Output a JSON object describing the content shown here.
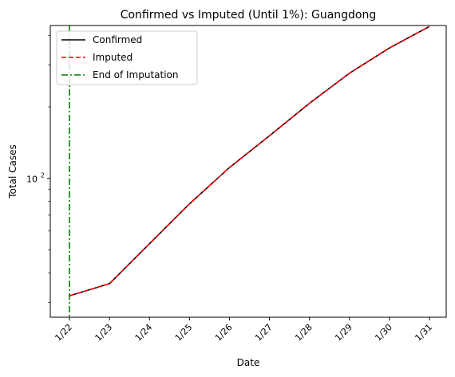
{
  "chart_data": {
    "type": "line",
    "title": "Confirmed vs Imputed (Until 1%): Guangdong",
    "xlabel": "Date",
    "ylabel": "Total Cases",
    "yscale": "log",
    "ylim": [
      26,
      440
    ],
    "categories": [
      "1/22",
      "1/23",
      "1/24",
      "1/25",
      "1/26",
      "1/27",
      "1/28",
      "1/29",
      "1/30",
      "1/31"
    ],
    "y_major_tick_labels": [
      {
        "value": 100,
        "base": "10",
        "exp": "2"
      }
    ],
    "y_minor_ticks": [
      30,
      40,
      50,
      60,
      70,
      80,
      90,
      200,
      300,
      400
    ],
    "series": [
      {
        "name": "Confirmed",
        "color": "#000000",
        "style": "solid",
        "values": [
          32,
          36,
          53,
          78,
          111,
          151,
          207,
          277,
          354,
          436
        ]
      },
      {
        "name": "Imputed",
        "color": "#ff0000",
        "style": "dashed",
        "values": [
          32,
          36,
          53,
          78,
          111,
          151,
          207,
          277,
          354,
          436
        ]
      }
    ],
    "vline": {
      "name": "End of Imputation",
      "x": "1/22",
      "color": "#008000",
      "style": "dashdot"
    },
    "legend": {
      "position": "top-left",
      "entries": [
        {
          "label": "Confirmed",
          "color": "#000000",
          "style": "solid"
        },
        {
          "label": "Imputed",
          "color": "#ff0000",
          "style": "dashed"
        },
        {
          "label": "End of Imputation",
          "color": "#008000",
          "style": "dashdot"
        }
      ]
    },
    "grid": false
  }
}
